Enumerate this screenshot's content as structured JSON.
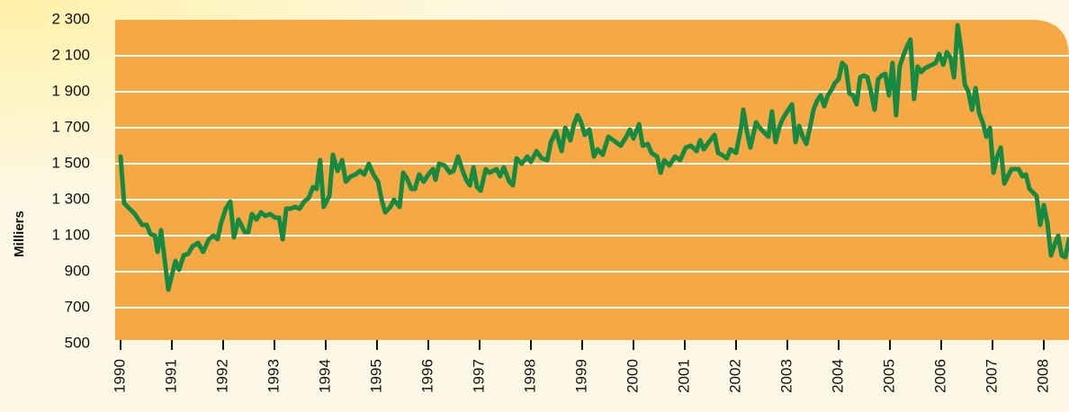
{
  "chart_data": {
    "type": "line",
    "ylabel": "Milliers",
    "color": "#178a41",
    "plot_color": "#f5a843",
    "grid": true,
    "xlim": [
      1990,
      2008.5
    ],
    "xticks": [
      1990,
      1991,
      1992,
      1993,
      1994,
      1995,
      1996,
      1997,
      1998,
      1999,
      2000,
      2001,
      2002,
      2003,
      2004,
      2005,
      2006,
      2007,
      2008
    ],
    "ylim": [
      500,
      2300
    ],
    "yticks": [
      {
        "value": 500,
        "label": "500"
      },
      {
        "value": 700,
        "label": "700"
      },
      {
        "value": 900,
        "label": "900"
      },
      {
        "value": 1100,
        "label": "1 100"
      },
      {
        "value": 1300,
        "label": "1 300"
      },
      {
        "value": 1500,
        "label": "1 500"
      },
      {
        "value": 1700,
        "label": "1 700"
      },
      {
        "value": 1900,
        "label": "1 900"
      },
      {
        "value": 2100,
        "label": "2 100"
      },
      {
        "value": 2300,
        "label": "2 300"
      }
    ],
    "x": [
      1990.0,
      1990.07,
      1990.28,
      1990.42,
      1990.51,
      1990.58,
      1990.67,
      1990.72,
      1990.79,
      1990.93,
      1991.07,
      1991.14,
      1991.23,
      1991.32,
      1991.4,
      1991.51,
      1991.61,
      1991.72,
      1991.81,
      1991.89,
      1991.96,
      1992.05,
      1992.14,
      1992.21,
      1992.3,
      1992.42,
      1992.49,
      1992.56,
      1992.65,
      1992.74,
      1992.82,
      1992.91,
      1993.02,
      1993.09,
      1993.16,
      1993.23,
      1993.32,
      1993.4,
      1993.49,
      1993.58,
      1993.67,
      1993.75,
      1993.82,
      1993.89,
      1993.96,
      1994.07,
      1994.14,
      1994.23,
      1994.32,
      1994.39,
      1994.49,
      1994.58,
      1994.67,
      1994.75,
      1994.84,
      1994.93,
      1995.02,
      1995.09,
      1995.16,
      1995.26,
      1995.33,
      1995.44,
      1995.51,
      1995.58,
      1995.67,
      1995.74,
      1995.82,
      1995.91,
      1996.0,
      1996.09,
      1996.14,
      1996.21,
      1996.32,
      1996.42,
      1996.49,
      1996.58,
      1996.67,
      1996.74,
      1996.81,
      1996.88,
      1996.95,
      1997.02,
      1997.12,
      1997.19,
      1997.26,
      1997.33,
      1997.4,
      1997.47,
      1997.58,
      1997.65,
      1997.72,
      1997.82,
      1997.93,
      1998.0,
      1998.11,
      1998.21,
      1998.32,
      1998.39,
      1998.49,
      1998.6,
      1998.67,
      1998.77,
      1998.84,
      1998.91,
      1998.98,
      1999.05,
      1999.14,
      1999.23,
      1999.3,
      1999.4,
      1999.51,
      1999.61,
      1999.75,
      1999.86,
      1999.93,
      2000.0,
      2000.11,
      2000.18,
      2000.28,
      2000.35,
      2000.46,
      2000.53,
      2000.6,
      2000.7,
      2000.81,
      2000.91,
      2001.02,
      2001.12,
      2001.23,
      2001.3,
      2001.37,
      2001.47,
      2001.58,
      2001.65,
      2001.72,
      2001.82,
      2001.89,
      2002.0,
      2002.11,
      2002.14,
      2002.21,
      2002.28,
      2002.39,
      2002.46,
      2002.56,
      2002.63,
      2002.7,
      2002.77,
      2002.84,
      2002.91,
      2003.02,
      2003.09,
      2003.16,
      2003.23,
      2003.3,
      2003.37,
      2003.44,
      2003.51,
      2003.58,
      2003.65,
      2003.72,
      2003.79,
      2003.86,
      2003.93,
      2004.0,
      2004.07,
      2004.14,
      2004.21,
      2004.28,
      2004.35,
      2004.42,
      2004.49,
      2004.56,
      2004.63,
      2004.7,
      2004.77,
      2004.84,
      2004.91,
      2004.98,
      2005.05,
      2005.12,
      2005.19,
      2005.26,
      2005.33,
      2005.4,
      2005.47,
      2005.54,
      2005.61,
      2005.68,
      2005.75,
      2005.82,
      2005.89,
      2005.96,
      2006.04,
      2006.11,
      2006.18,
      2006.25,
      2006.32,
      2006.39,
      2006.46,
      2006.53,
      2006.6,
      2006.67,
      2006.74,
      2006.81,
      2006.88,
      2006.95,
      2007.02,
      2007.09,
      2007.16,
      2007.23,
      2007.3,
      2007.37,
      2007.44,
      2007.51,
      2007.58,
      2007.65,
      2007.72,
      2007.79,
      2007.86,
      2007.93,
      2008.0,
      2008.07,
      2008.14,
      2008.21,
      2008.28,
      2008.35,
      2008.42,
      2008.49
    ],
    "values": [
      1540,
      1280,
      1220,
      1160,
      1160,
      1110,
      1100,
      1010,
      1130,
      800,
      960,
      910,
      990,
      1000,
      1040,
      1060,
      1010,
      1080,
      1100,
      1080,
      1170,
      1250,
      1290,
      1090,
      1190,
      1120,
      1120,
      1220,
      1190,
      1230,
      1210,
      1220,
      1200,
      1200,
      1080,
      1250,
      1250,
      1260,
      1250,
      1290,
      1310,
      1370,
      1360,
      1520,
      1260,
      1320,
      1550,
      1460,
      1520,
      1400,
      1430,
      1440,
      1460,
      1440,
      1500,
      1440,
      1400,
      1300,
      1230,
      1260,
      1300,
      1260,
      1450,
      1420,
      1360,
      1360,
      1440,
      1400,
      1440,
      1470,
      1410,
      1500,
      1490,
      1450,
      1460,
      1540,
      1460,
      1410,
      1380,
      1480,
      1370,
      1350,
      1470,
      1450,
      1460,
      1470,
      1430,
      1480,
      1400,
      1380,
      1530,
      1500,
      1540,
      1510,
      1570,
      1530,
      1520,
      1620,
      1680,
      1570,
      1700,
      1630,
      1720,
      1770,
      1730,
      1660,
      1690,
      1540,
      1580,
      1550,
      1650,
      1630,
      1600,
      1650,
      1690,
      1640,
      1720,
      1600,
      1610,
      1560,
      1540,
      1450,
      1520,
      1490,
      1540,
      1520,
      1590,
      1600,
      1570,
      1630,
      1580,
      1620,
      1660,
      1560,
      1550,
      1530,
      1580,
      1560,
      1720,
      1800,
      1680,
      1590,
      1730,
      1700,
      1670,
      1650,
      1790,
      1620,
      1700,
      1750,
      1800,
      1830,
      1620,
      1710,
      1650,
      1610,
      1700,
      1800,
      1850,
      1880,
      1820,
      1880,
      1910,
      1950,
      1970,
      2060,
      2040,
      1890,
      1880,
      1830,
      1980,
      1990,
      1980,
      1900,
      1800,
      1970,
      1990,
      2000,
      1880,
      2060,
      1770,
      2040,
      2100,
      2150,
      2190,
      1860,
      2040,
      2010,
      2030,
      2040,
      2050,
      2060,
      2110,
      2050,
      2120,
      2090,
      1980,
      2270,
      2130,
      1940,
      1900,
      1800,
      1920,
      1780,
      1730,
      1650,
      1700,
      1450,
      1540,
      1590,
      1390,
      1430,
      1470,
      1470,
      1470,
      1430,
      1440,
      1360,
      1340,
      1320,
      1160,
      1270,
      1170,
      990,
      1050,
      1100,
      990,
      980,
      1080
    ]
  }
}
